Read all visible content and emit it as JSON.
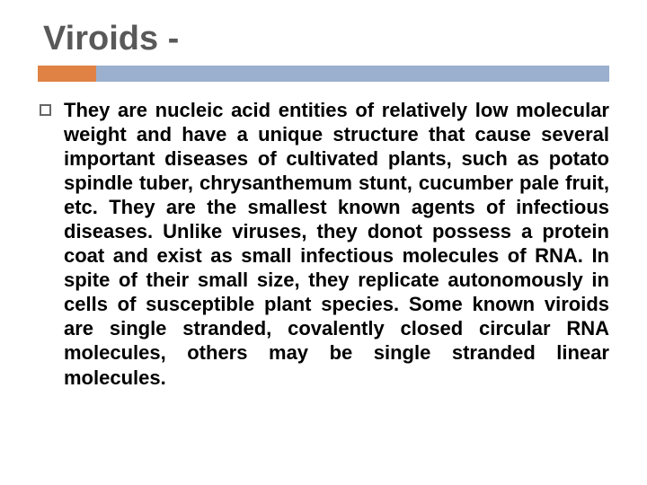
{
  "slide": {
    "title": "Viroids -",
    "title_color": "#595959",
    "title_fontsize": 38,
    "divider": {
      "accent_color": "#df8244",
      "accent_width": 65,
      "main_color": "#9bafce",
      "height": 18
    },
    "bullet": {
      "border_color": "#666666",
      "size": 13
    },
    "body": {
      "text": "They are nucleic acid entities of relatively low molecular weight and have a unique structure that cause several important diseases of cultivated plants, such as potato spindle tuber, chrysanthemum stunt, cucumber pale fruit, etc. They are the smallest known agents of infectious diseases. Unlike viruses, they donot possess a protein coat and exist as small infectious molecules of RNA. In spite of their small size, they replicate autonomously in cells of susceptible plant species. Some known viroids are single stranded, covalently closed circular RNA molecules, others may be single stranded linear molecules.",
      "fontsize": 22,
      "color": "#000000"
    },
    "background_color": "#ffffff"
  }
}
